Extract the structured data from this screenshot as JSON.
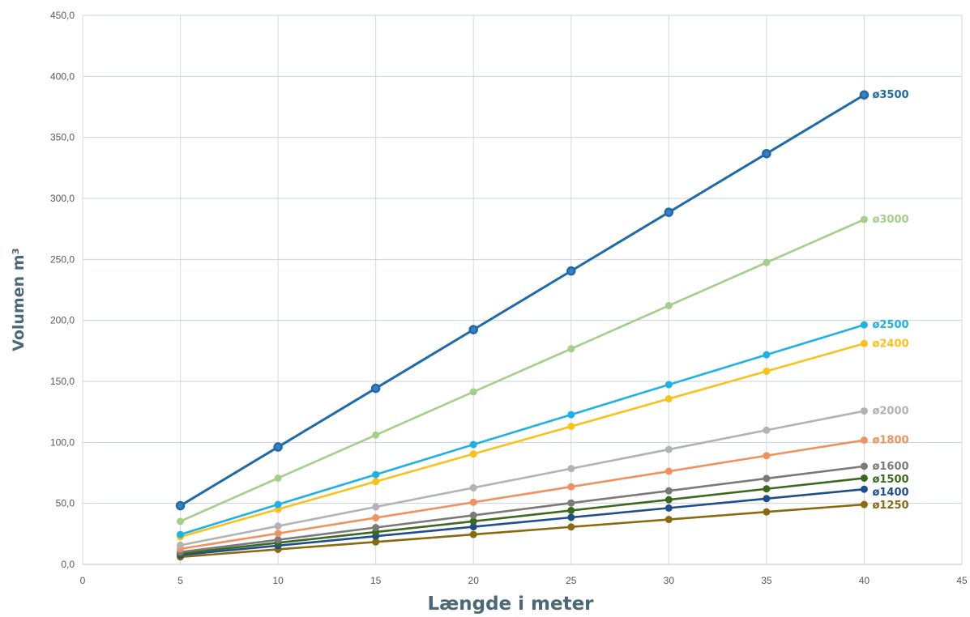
{
  "chart_data": {
    "type": "line",
    "xlabel": "Længde i meter",
    "ylabel": "Volumen m³",
    "xlim": [
      0,
      45
    ],
    "ylim": [
      0,
      450
    ],
    "x_ticks": [
      "0",
      "5",
      "10",
      "15",
      "20",
      "25",
      "30",
      "35",
      "40",
      "45"
    ],
    "y_ticks": [
      "0,0",
      "50,0",
      "100,0",
      "150,0",
      "200,0",
      "250,0",
      "300,0",
      "350,0",
      "400,0",
      "450,0"
    ],
    "grid": "vertical and horizontal",
    "x": [
      5,
      10,
      15,
      20,
      25,
      30,
      35,
      40
    ],
    "series": [
      {
        "name": "ø3500",
        "color": "#1f6aa8",
        "values": [
          48.1,
          96.2,
          144.3,
          192.4,
          240.5,
          288.6,
          336.7,
          384.8
        ]
      },
      {
        "name": "ø3000",
        "color": "#a4cf8a",
        "values": [
          35.3,
          70.7,
          106.0,
          141.4,
          176.7,
          212.1,
          247.4,
          282.7
        ]
      },
      {
        "name": "ø2500",
        "color": "#1eb1e6",
        "values": [
          24.5,
          49.1,
          73.6,
          98.2,
          122.7,
          147.3,
          171.8,
          196.3
        ]
      },
      {
        "name": "ø2400",
        "color": "#f8c21a",
        "values": [
          22.6,
          45.2,
          67.9,
          90.5,
          113.1,
          135.7,
          158.3,
          181.0
        ]
      },
      {
        "name": "ø2000",
        "color": "#b3b3b3",
        "values": [
          15.7,
          31.4,
          47.1,
          62.8,
          78.5,
          94.2,
          110.0,
          125.7
        ]
      },
      {
        "name": "ø1800",
        "color": "#f0925f",
        "values": [
          12.7,
          25.4,
          38.2,
          50.9,
          63.6,
          76.3,
          89.1,
          101.8
        ]
      },
      {
        "name": "ø1600",
        "color": "#7a7a7a",
        "values": [
          10.1,
          20.1,
          30.2,
          40.2,
          50.3,
          60.3,
          70.4,
          80.4
        ]
      },
      {
        "name": "ø1500",
        "color": "#3b6a1f",
        "values": [
          8.8,
          17.7,
          26.5,
          35.3,
          44.2,
          53.0,
          61.9,
          70.7
        ]
      },
      {
        "name": "ø1400",
        "color": "#1f4e8c",
        "values": [
          7.7,
          15.4,
          23.1,
          30.8,
          38.5,
          46.2,
          53.9,
          61.6
        ]
      },
      {
        "name": "ø1250",
        "color": "#8a6a0e",
        "values": [
          6.1,
          12.3,
          18.4,
          24.5,
          30.7,
          36.8,
          43.0,
          49.1
        ]
      }
    ]
  }
}
